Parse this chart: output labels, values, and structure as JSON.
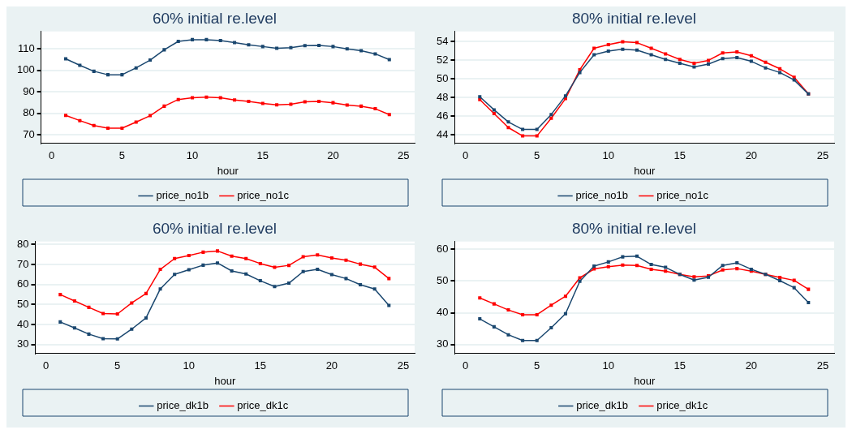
{
  "chart_data": [
    {
      "type": "line",
      "title": "60% initial re.level",
      "xlabel": "hour",
      "x": [
        1,
        2,
        3,
        4,
        5,
        6,
        7,
        8,
        9,
        10,
        11,
        12,
        13,
        14,
        15,
        16,
        17,
        18,
        19,
        20,
        21,
        22,
        23,
        24
      ],
      "xlim": [
        -0.75,
        25.8
      ],
      "xticks": [
        0,
        5,
        10,
        15,
        20,
        25
      ],
      "ylim": [
        66,
        118
      ],
      "yticks": [
        70,
        80,
        90,
        100,
        110
      ],
      "grid": "y",
      "legend": "bottom",
      "marker": "square",
      "line_style": "solid",
      "series": [
        {
          "name": "price_no1b",
          "color": "#1a476f",
          "values": [
            105.3,
            102.3,
            99.5,
            97.9,
            97.9,
            101.1,
            104.7,
            109.5,
            113.4,
            114.2,
            114.2,
            113.8,
            112.8,
            111.8,
            111,
            110.2,
            110.5,
            111.4,
            111.5,
            111,
            109.9,
            109.1,
            107.6,
            104.9
          ]
        },
        {
          "name": "price_no1c",
          "color": "#ff0000",
          "values": [
            79,
            76.6,
            74.3,
            73.1,
            73.1,
            75.9,
            78.9,
            83.3,
            86.4,
            87.2,
            87.5,
            87.2,
            86.2,
            85.5,
            84.6,
            83.9,
            84.2,
            85.3,
            85.5,
            84.9,
            83.8,
            83.3,
            82.1,
            79.4
          ]
        }
      ]
    },
    {
      "type": "line",
      "title": "80% initial re.level",
      "xlabel": "hour",
      "x": [
        1,
        2,
        3,
        4,
        5,
        6,
        7,
        8,
        9,
        10,
        11,
        12,
        13,
        14,
        15,
        16,
        17,
        18,
        19,
        20,
        21,
        22,
        23,
        24
      ],
      "xlim": [
        -0.75,
        25.8
      ],
      "xticks": [
        0,
        5,
        10,
        15,
        20,
        25
      ],
      "ylim": [
        43.1,
        55.1
      ],
      "yticks": [
        44,
        46,
        48,
        50,
        52,
        54
      ],
      "grid": "y",
      "legend": "bottom",
      "marker": "square",
      "line_style": "solid",
      "series": [
        {
          "name": "price_no1b",
          "color": "#1a476f",
          "values": [
            48.1,
            46.7,
            45.4,
            44.6,
            44.6,
            46.2,
            48.2,
            50.7,
            52.6,
            53,
            53.2,
            53.1,
            52.6,
            52.1,
            51.7,
            51.3,
            51.6,
            52.2,
            52.3,
            51.9,
            51.2,
            50.7,
            49.9,
            48.4
          ]
        },
        {
          "name": "price_no1c",
          "color": "#ff0000",
          "values": [
            47.8,
            46.3,
            44.8,
            43.9,
            43.9,
            45.8,
            47.9,
            51,
            53.3,
            53.7,
            54,
            53.9,
            53.3,
            52.7,
            52.1,
            51.7,
            52,
            52.8,
            52.9,
            52.5,
            51.8,
            51.1,
            50.2,
            48.4
          ]
        }
      ]
    },
    {
      "type": "line",
      "title": "60% initial re.level",
      "xlabel": "hour",
      "x": [
        1,
        2,
        3,
        4,
        5,
        6,
        7,
        8,
        9,
        10,
        11,
        12,
        13,
        14,
        15,
        16,
        17,
        18,
        19,
        20,
        21,
        22,
        23,
        24
      ],
      "xlim": [
        -0.75,
        25.8
      ],
      "xticks": [
        0,
        5,
        10,
        15,
        20,
        25
      ],
      "ylim": [
        25.5,
        81.5
      ],
      "yticks": [
        30,
        40,
        50,
        60,
        70,
        80
      ],
      "grid": "y",
      "legend": "bottom",
      "marker": "square",
      "line_style": "solid",
      "series": [
        {
          "name": "price_dk1b",
          "color": "#1a476f",
          "values": [
            41.3,
            38.3,
            35.2,
            32.9,
            32.8,
            37.7,
            43.3,
            57.8,
            65.1,
            67.4,
            69.7,
            70.8,
            66.8,
            65.3,
            61.9,
            59,
            60.7,
            66.5,
            67.6,
            65,
            63,
            59.9,
            57.8,
            49.6
          ]
        },
        {
          "name": "price_dk1c",
          "color": "#ff0000",
          "values": [
            55,
            51.8,
            48.6,
            45.5,
            45.3,
            50.8,
            55.5,
            67.6,
            73,
            74.5,
            76.2,
            76.8,
            74.2,
            73,
            70.5,
            68.6,
            69.6,
            73.9,
            74.8,
            73.3,
            72.2,
            70.2,
            68.7,
            63
          ]
        }
      ]
    },
    {
      "type": "line",
      "title": "80% initial re.level",
      "xlabel": "hour",
      "x": [
        1,
        2,
        3,
        4,
        5,
        6,
        7,
        8,
        9,
        10,
        11,
        12,
        13,
        14,
        15,
        16,
        17,
        18,
        19,
        20,
        21,
        22,
        23,
        24
      ],
      "xlim": [
        -0.75,
        25.8
      ],
      "xticks": [
        0,
        5,
        10,
        15,
        20,
        25
      ],
      "ylim": [
        27.2,
        62.4
      ],
      "yticks": [
        30,
        40,
        50,
        60
      ],
      "grid": "y",
      "legend": "bottom",
      "marker": "square",
      "line_style": "solid",
      "series": [
        {
          "name": "price_dk1b",
          "color": "#1a476f",
          "values": [
            38.1,
            35.6,
            33.1,
            31.3,
            31.3,
            35.3,
            39.7,
            49.9,
            54.7,
            56,
            57.6,
            57.8,
            55.2,
            54.3,
            52.1,
            50.3,
            51.2,
            54.9,
            55.7,
            53.7,
            52.1,
            50.1,
            47.9,
            43.2
          ]
        },
        {
          "name": "price_dk1c",
          "color": "#ff0000",
          "values": [
            44.7,
            42.8,
            40.9,
            39.4,
            39.4,
            42.4,
            45.2,
            51,
            53.8,
            54.5,
            55,
            54.9,
            53.7,
            53.1,
            52.1,
            51.3,
            51.6,
            53.5,
            53.9,
            53.1,
            52.1,
            51.1,
            50.2,
            47.4
          ]
        }
      ]
    }
  ]
}
